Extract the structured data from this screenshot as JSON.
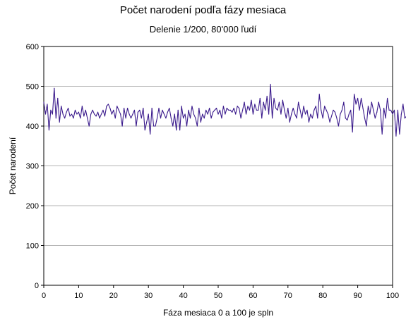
{
  "chart_data": {
    "type": "line",
    "title": "Počet narodení podľa fázy mesiaca",
    "subtitle": "Delenie 1/200, 80'000 ľudí",
    "xlabel": "Fáza mesiaca 0 a 100 je spln",
    "ylabel": "Počet narodení",
    "xlim": [
      0,
      100
    ],
    "ylim": [
      0,
      600
    ],
    "xticks": [
      0,
      10,
      20,
      30,
      40,
      50,
      60,
      70,
      80,
      90,
      100
    ],
    "yticks": [
      0,
      100,
      200,
      300,
      400,
      500,
      600
    ],
    "grid": "horizontal",
    "legend": "none",
    "line_color": "#3a1a8c",
    "x_step": 0.5,
    "values": [
      460,
      430,
      455,
      390,
      440,
      430,
      495,
      420,
      470,
      410,
      450,
      430,
      420,
      435,
      445,
      425,
      430,
      420,
      440,
      430,
      435,
      420,
      450,
      425,
      440,
      420,
      400,
      430,
      440,
      430,
      425,
      435,
      420,
      430,
      440,
      425,
      450,
      455,
      445,
      430,
      440,
      420,
      450,
      440,
      430,
      400,
      445,
      420,
      445,
      430,
      420,
      430,
      440,
      400,
      435,
      440,
      420,
      445,
      390,
      410,
      430,
      380,
      445,
      400,
      400,
      420,
      445,
      420,
      440,
      430,
      420,
      435,
      445,
      420,
      400,
      430,
      390,
      440,
      390,
      450,
      420,
      430,
      400,
      440,
      420,
      450,
      430,
      420,
      400,
      445,
      410,
      430,
      420,
      440,
      430,
      445,
      420,
      435,
      440,
      445,
      430,
      440,
      420,
      450,
      430,
      445,
      440,
      440,
      435,
      445,
      430,
      450,
      445,
      420,
      440,
      460,
      430,
      450,
      440,
      465,
      430,
      455,
      440,
      440,
      470,
      420,
      460,
      440,
      475,
      430,
      505,
      420,
      470,
      445,
      440,
      460,
      430,
      465,
      440,
      420,
      445,
      410,
      430,
      445,
      430,
      420,
      460,
      440,
      420,
      450,
      430,
      440,
      410,
      430,
      420,
      440,
      450,
      420,
      480,
      440,
      420,
      450,
      440,
      430,
      410,
      425,
      440,
      435,
      420,
      400,
      430,
      440,
      460,
      420,
      415,
      430,
      440,
      385,
      480,
      455,
      470,
      440,
      470,
      445,
      420,
      400,
      450,
      430,
      460,
      440,
      420,
      435,
      460,
      440,
      380,
      445,
      420,
      470,
      440,
      440,
      430,
      440,
      375,
      440,
      380,
      430,
      455,
      420,
      425,
      410,
      430,
      450,
      440,
      460,
      420,
      400,
      430,
      440,
      460,
      445,
      405,
      440,
      410,
      445,
      440,
      440,
      450,
      430,
      455,
      440,
      440
    ]
  }
}
